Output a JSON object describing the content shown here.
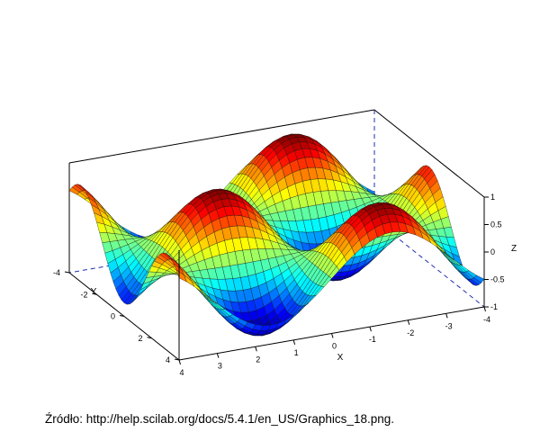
{
  "chart_data": {
    "type": "surface",
    "function": "z = sin(x) * cos(y)",
    "xlabel": "X",
    "ylabel": "Y",
    "zlabel": "Z",
    "xlim": [
      -4,
      4
    ],
    "ylim": [
      -4,
      4
    ],
    "zlim": [
      -1,
      1
    ],
    "x_ticks": [
      "4",
      "3",
      "2",
      "1",
      "0",
      "-1",
      "-2",
      "-3",
      "-4"
    ],
    "y_ticks": [
      "-4",
      "-2",
      "0",
      "2",
      "4"
    ],
    "z_ticks": [
      "1",
      "0.5",
      "0",
      "-0.5",
      "-1"
    ],
    "colormap": "jet",
    "grid_lines": true
  },
  "caption": "Źródło: http://help.scilab.org/docs/5.4.1/en_US/Graphics_18.png."
}
